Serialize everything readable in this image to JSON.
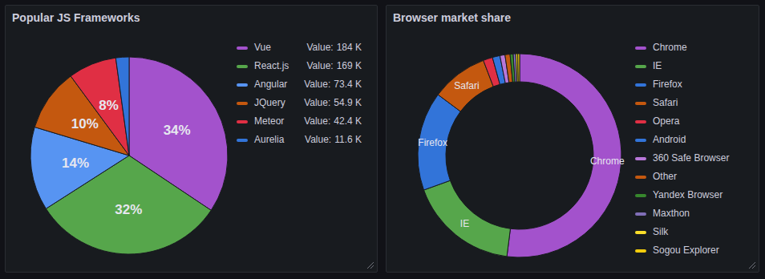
{
  "chart_data": [
    {
      "type": "pie",
      "title": "Popular JS Frameworks",
      "categories": [
        "Vue",
        "React.js",
        "Angular",
        "JQuery",
        "Meteor",
        "Aurelia"
      ],
      "values": [
        184000,
        169000,
        73400,
        54900,
        42400,
        11600
      ],
      "value_labels": [
        "184 K",
        "169 K",
        "73.4 K",
        "54.9 K",
        "42.4 K",
        "11.6 K"
      ],
      "legend_value_prefix": "Value:",
      "percentages": [
        34,
        32,
        14,
        10,
        8,
        null
      ],
      "percentage_labels": [
        "34%",
        "32%",
        "14%",
        "10%",
        "8%",
        null
      ],
      "colors": [
        "#a352cc",
        "#56a64b",
        "#5794f2",
        "#c4580f",
        "#e02f44",
        "#3274d9"
      ],
      "legend": "right"
    },
    {
      "type": "donut",
      "title": "Browser market share",
      "categories": [
        "Chrome",
        "IE",
        "Firefox",
        "Safari",
        "Opera",
        "Android",
        "360 Safe Browser",
        "Other",
        "Yandex Browser",
        "Maxthon",
        "Silk",
        "Sogou Explorer"
      ],
      "values": [
        52,
        17.5,
        15.7,
        9,
        1.5,
        1.2,
        0.8,
        0.8,
        0.5,
        0.4,
        0.3,
        0.3
      ],
      "slice_labels": [
        "Chrome",
        "IE",
        "Firefox",
        "Safari",
        null,
        null,
        null,
        null,
        null,
        null,
        null,
        null
      ],
      "colors": [
        "#a352cc",
        "#56a64b",
        "#3274d9",
        "#c4580f",
        "#e02f44",
        "#3274d9",
        "#b877d9",
        "#c4580f",
        "#37872d",
        "#806eb7",
        "#fade2a",
        "#f2cc0c"
      ],
      "legend": "right"
    }
  ]
}
